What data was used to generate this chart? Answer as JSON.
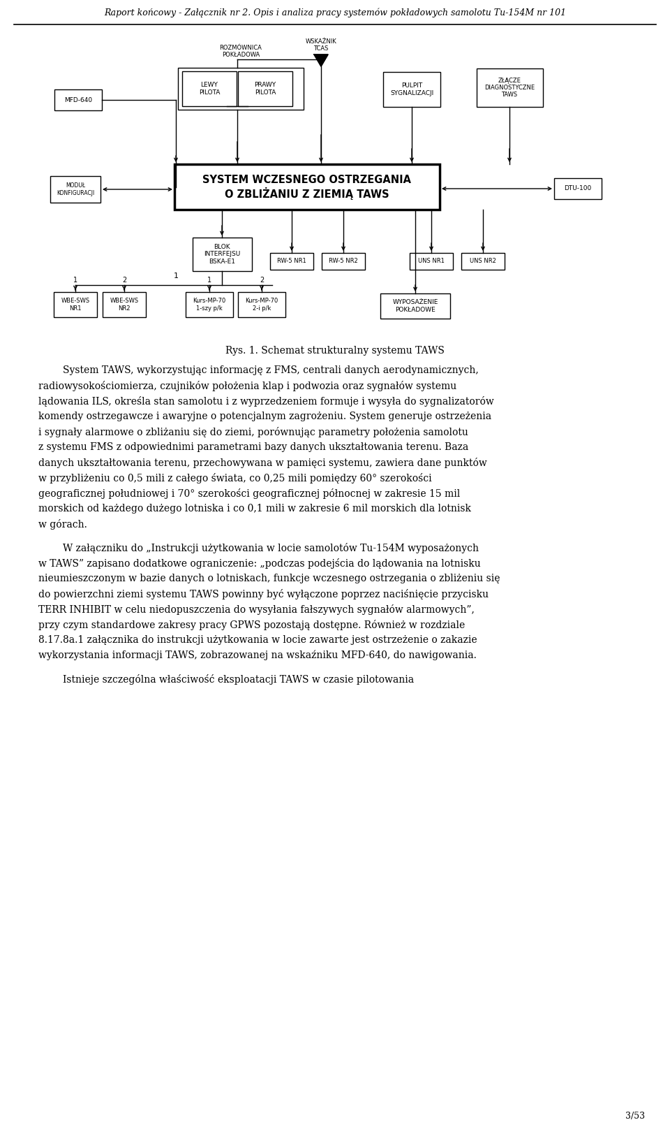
{
  "header_text": "Raport końcowy - Załącznik nr 2. Opis i analiza pracy systemów pokładowych samolotu Tu-154M nr 101",
  "footer_text": "3/53",
  "background_color": "#ffffff",
  "caption": "Rys. 1. Schemat strukturalny systemu TAWS",
  "body_text": [
    "System TAWS, wykorzystując informację z FMS, centrali danych aerodynamicznych,",
    "radiowysokościomierza, czujników położenia klap i podwozia oraz sygnałów systemu",
    "lądowania ILS, określa stan samolotu i z wyprzedzeniem formuje i wysyła do sygnalizatorów",
    "komendy ostrzegawcze i awaryjne o potencjalnym zagrożeniu. System generuje ostrzeżenia",
    "i sygnały alarmowe o zbliżaniu się do ziemi, porównując parametry położenia samolotu",
    "z systemu FMS z odpowiednimi parametrami bazy danych ukształtowania terenu. Baza",
    "danych ukształtowania terenu, przechowywana w pamięci systemu, zawiera dane punktów",
    "w przybliżeniu co 0,5 mili z całego świata, co 0,25 mili pomiędzy 60° szerokości",
    "geograficznej południowej i 70° szerokości geograficznej północnej w zakresie 15 mil",
    "morskich od każdego dużego lotniska i co 0,1 mili w zakresie 6 mil morskich dla lotnisk",
    "w górach."
  ],
  "body_text2": [
    "W załączniku do „Instrukcji użytkowania w locie samolotów Tu-154M wyposażonych",
    "w TAWS” zapisano dodatkowe ograniczenie: „podczas podejścia do lądowania na lotnisku",
    "nieumieszczonym w bazie danych o lotniskach, funkcje wczesnego ostrzegania o zbliżeniu się",
    "do powierzchni ziemi systemu TAWS powinny być wyłączone poprzez naciśnięcie przycisku",
    "TERR INHIBIT w celu niedopuszczenia do wysyłania fałszywych sygnałów alarmowych”,",
    "przy czym standardowe zakresy pracy GPWS pozostają dostępne. Również w rozdziale",
    "8.17.8a.1 załącznika do instrukcji użytkowania w locie zawarte jest ostrzeżenie o zakazie",
    "wykorzystania informacji TAWS, zobrazowanej na wskaźniku MFD-640, do nawigowania."
  ],
  "body_text3": [
    "Istnieje szczególna właściwość eksploatacji TAWS w czasie pilotowania"
  ]
}
